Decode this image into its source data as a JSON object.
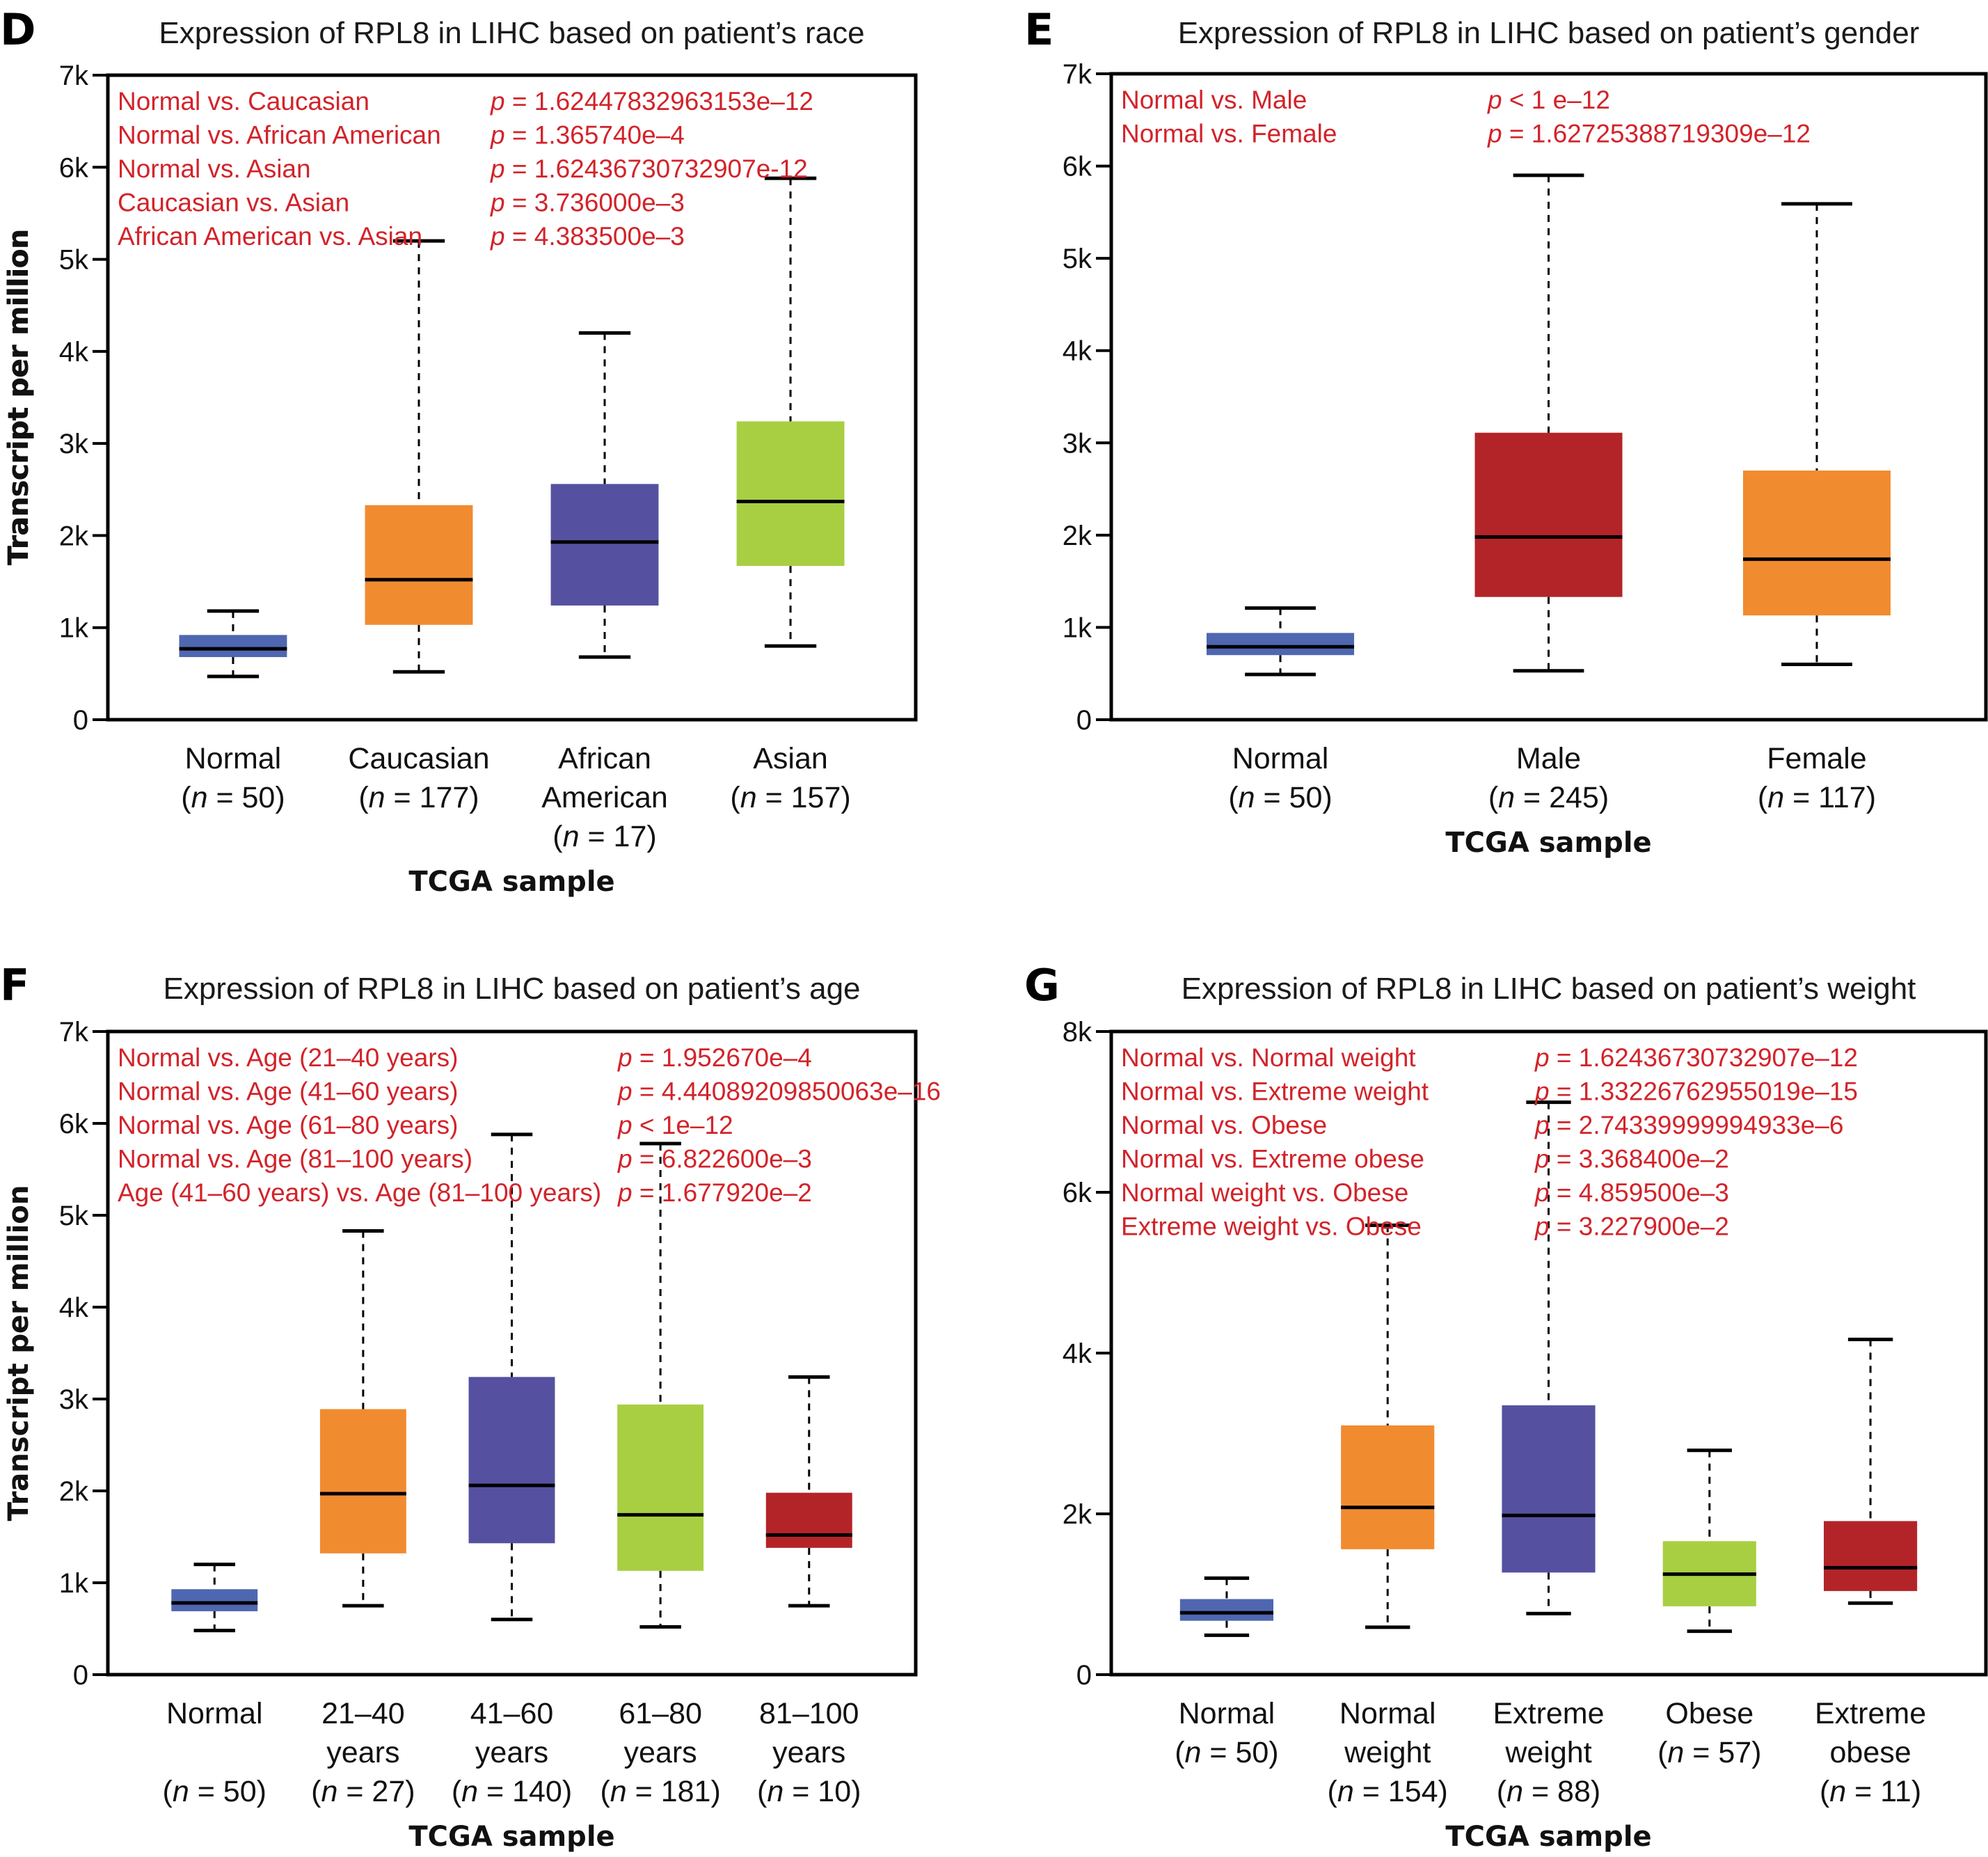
{
  "chart_data": [
    {
      "id": "D",
      "panel_letter": "D",
      "type": "box",
      "title": "Expression of RPL8 in LIHC based on patient’s race",
      "xlabel": "TCGA sample",
      "ylabel": "Transcript per million",
      "ylim": [
        0,
        7000
      ],
      "yticks": [
        0,
        1000,
        2000,
        3000,
        4000,
        5000,
        6000,
        7000
      ],
      "ytick_labels": [
        "0",
        "1k",
        "2k",
        "3k",
        "4k",
        "5k",
        "6k",
        "7k"
      ],
      "grid": false,
      "categories": [
        {
          "lines": [
            "Normal",
            "(n = 50)"
          ],
          "n": 50
        },
        {
          "lines": [
            "Caucasian",
            "(n = 177)"
          ],
          "n": 177
        },
        {
          "lines": [
            "African",
            "American",
            "(n = 17)"
          ],
          "n": 17
        },
        {
          "lines": [
            "Asian",
            "(n = 157)"
          ],
          "n": 157
        }
      ],
      "boxes": [
        {
          "name": "Normal",
          "min": 470,
          "q1": 680,
          "median": 770,
          "q3": 920,
          "max": 1180,
          "color": "#4e67b0"
        },
        {
          "name": "Caucasian",
          "min": 520,
          "q1": 1030,
          "median": 1520,
          "q3": 2330,
          "max": 5200,
          "color": "#f18b30"
        },
        {
          "name": "African American",
          "min": 680,
          "q1": 1240,
          "median": 1930,
          "q3": 2560,
          "max": 4200,
          "color": "#5551a0"
        },
        {
          "name": "Asian",
          "min": 800,
          "q1": 1670,
          "median": 2370,
          "q3": 3240,
          "max": 5880,
          "color": "#a8cf42"
        }
      ],
      "annotations": [
        {
          "label": "Normal vs. Caucasian",
          "p": "p = 1.62447832963153e–12"
        },
        {
          "label": "Normal vs. African American",
          "p": "p = 1.365740e–4"
        },
        {
          "label": "Normal vs. Asian",
          "p": "p = 1.62436730732907e-12"
        },
        {
          "label": "Caucasian vs. Asian",
          "p": "p = 3.736000e–3"
        },
        {
          "label": "African American vs. Asian",
          "p": "p = 4.383500e–3"
        }
      ]
    },
    {
      "id": "E",
      "panel_letter": "E",
      "type": "box",
      "title": "Expression of RPL8 in LIHC based on patient’s gender",
      "xlabel": "TCGA sample",
      "ylabel": "Transcript per million",
      "ylim": [
        0,
        7000
      ],
      "yticks": [
        0,
        1000,
        2000,
        3000,
        4000,
        5000,
        6000,
        7000
      ],
      "ytick_labels": [
        "0",
        "1k",
        "2k",
        "3k",
        "4k",
        "5k",
        "6k",
        "7k"
      ],
      "grid": false,
      "categories": [
        {
          "lines": [
            "Normal",
            "(n = 50)"
          ],
          "n": 50
        },
        {
          "lines": [
            "Male",
            "(n = 245)"
          ],
          "n": 245
        },
        {
          "lines": [
            "Female",
            "(n = 117)"
          ],
          "n": 117
        }
      ],
      "boxes": [
        {
          "name": "Normal",
          "min": 490,
          "q1": 700,
          "median": 790,
          "q3": 940,
          "max": 1210,
          "color": "#4e67b0"
        },
        {
          "name": "Male",
          "min": 530,
          "q1": 1330,
          "median": 1980,
          "q3": 3110,
          "max": 5900,
          "color": "#b32428"
        },
        {
          "name": "Female",
          "min": 600,
          "q1": 1130,
          "median": 1740,
          "q3": 2700,
          "max": 5590,
          "color": "#f18b30"
        }
      ],
      "annotations": [
        {
          "label": "Normal vs. Male",
          "p": "p < 1 e–12"
        },
        {
          "label": "Normal vs. Female",
          "p": "p = 1.62725388719309e–12"
        }
      ]
    },
    {
      "id": "F",
      "panel_letter": "F",
      "type": "box",
      "title": "Expression of RPL8 in LIHC based on patient’s age",
      "xlabel": "TCGA sample",
      "ylabel": "Transcript per million",
      "ylim": [
        0,
        7000
      ],
      "yticks": [
        0,
        1000,
        2000,
        3000,
        4000,
        5000,
        6000,
        7000
      ],
      "ytick_labels": [
        "0",
        "1k",
        "2k",
        "3k",
        "4k",
        "5k",
        "6k",
        "7k"
      ],
      "grid": false,
      "categories": [
        {
          "lines": [
            "Normal",
            "",
            "(n = 50)"
          ],
          "n": 50
        },
        {
          "lines": [
            "21–40",
            "years",
            "(n = 27)"
          ],
          "n": 27
        },
        {
          "lines": [
            "41–60",
            "years",
            "(n = 140)"
          ],
          "n": 140
        },
        {
          "lines": [
            "61–80",
            "years",
            "(n = 181)"
          ],
          "n": 181
        },
        {
          "lines": [
            "81–100",
            "years",
            "(n = 10)"
          ],
          "n": 10
        }
      ],
      "boxes": [
        {
          "name": "Normal",
          "min": 480,
          "q1": 690,
          "median": 780,
          "q3": 930,
          "max": 1200,
          "color": "#4e67b0"
        },
        {
          "name": "21–40 years",
          "min": 750,
          "q1": 1320,
          "median": 1970,
          "q3": 2890,
          "max": 4830,
          "color": "#f18b30"
        },
        {
          "name": "41–60 years",
          "min": 600,
          "q1": 1430,
          "median": 2060,
          "q3": 3240,
          "max": 5880,
          "color": "#5551a0"
        },
        {
          "name": "61–80 years",
          "min": 520,
          "q1": 1130,
          "median": 1740,
          "q3": 2940,
          "max": 5780,
          "color": "#a8cf42"
        },
        {
          "name": "81–100 years",
          "min": 750,
          "q1": 1380,
          "median": 1520,
          "q3": 1980,
          "max": 3240,
          "color": "#b32428"
        }
      ],
      "annotations": [
        {
          "label": "Normal vs. Age (21–40 years)",
          "p": "p = 1.952670e–4"
        },
        {
          "label": "Normal vs. Age (41–60 years)",
          "p": "p = 4.44089209850063e–16"
        },
        {
          "label": "Normal vs. Age (61–80 years)",
          "p": "p < 1e–12"
        },
        {
          "label": "Normal vs. Age (81–100 years)",
          "p": "p = 6.822600e–3"
        },
        {
          "label": "Age (41–60 years) vs. Age (81–100 years)",
          "p": "p = 1.677920e–2"
        }
      ]
    },
    {
      "id": "G",
      "panel_letter": "G",
      "type": "box",
      "title": "Expression of RPL8 in LIHC based on patient’s weight",
      "xlabel": "TCGA sample",
      "ylabel": "Transcript per million",
      "ylim": [
        0,
        8000
      ],
      "yticks": [
        0,
        2000,
        4000,
        6000,
        8000
      ],
      "ytick_labels": [
        "0",
        "2k",
        "4k",
        "6k",
        "8k"
      ],
      "grid": false,
      "categories": [
        {
          "lines": [
            "Normal",
            "(n = 50)"
          ],
          "n": 50
        },
        {
          "lines": [
            "Normal",
            "weight",
            "(n = 154)"
          ],
          "n": 154
        },
        {
          "lines": [
            "Extreme",
            "weight",
            "(n = 88)"
          ],
          "n": 88
        },
        {
          "lines": [
            "Obese",
            "(n = 57)"
          ],
          "n": 57
        },
        {
          "lines": [
            "Extreme",
            "obese",
            "(n = 11)"
          ],
          "n": 11
        }
      ],
      "boxes": [
        {
          "name": "Normal",
          "min": 490,
          "q1": 670,
          "median": 770,
          "q3": 940,
          "max": 1200,
          "color": "#4e67b0"
        },
        {
          "name": "Normal weight",
          "min": 590,
          "q1": 1560,
          "median": 2080,
          "q3": 3100,
          "max": 5590,
          "color": "#f18b30"
        },
        {
          "name": "Extreme weight",
          "min": 760,
          "q1": 1270,
          "median": 1980,
          "q3": 3350,
          "max": 7120,
          "color": "#5551a0"
        },
        {
          "name": "Obese",
          "min": 540,
          "q1": 850,
          "median": 1250,
          "q3": 1660,
          "max": 2790,
          "color": "#a8cf42"
        },
        {
          "name": "Extreme obese",
          "min": 890,
          "q1": 1040,
          "median": 1330,
          "q3": 1910,
          "max": 4170,
          "color": "#b32428"
        }
      ],
      "annotations": [
        {
          "label": "Normal vs. Normal weight",
          "p": "p = 1.62436730732907e–12"
        },
        {
          "label": "Normal vs. Extreme weight",
          "p": "p = 1.33226762955019e–15"
        },
        {
          "label": "Normal vs. Obese",
          "p": "p = 2.74339999994933e–6"
        },
        {
          "label": "Normal vs. Extreme obese",
          "p": "p = 3.368400e–2"
        },
        {
          "label": "Normal weight vs. Obese",
          "p": "p = 4.859500e–3"
        },
        {
          "label": "Extreme weight vs. Obese",
          "p": "p = 3.227900e–2"
        }
      ]
    }
  ]
}
